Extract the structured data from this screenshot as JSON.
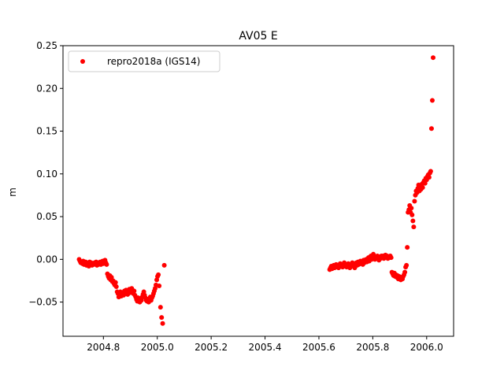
{
  "chart_data": {
    "type": "scatter",
    "title": "AV05 E",
    "xlabel": "",
    "ylabel": "m",
    "xlim": [
      2004.65,
      2006.1
    ],
    "ylim": [
      -0.09,
      0.25
    ],
    "xticks": [
      "2004.8",
      "2005.0",
      "2005.2",
      "2005.4",
      "2005.6",
      "2005.8",
      "2006.0"
    ],
    "yticks": [
      "0.25",
      "0.20",
      "0.15",
      "0.10",
      "0.05",
      "0.00",
      "−0.05"
    ],
    "xtick_values": [
      2004.8,
      2005.0,
      2005.2,
      2005.4,
      2005.6,
      2005.8,
      2006.0
    ],
    "ytick_values": [
      0.25,
      0.2,
      0.15,
      0.1,
      0.05,
      0.0,
      -0.05
    ],
    "legend_position": "top-left",
    "grid": false,
    "series": [
      {
        "name": "repro2018a (IGS14)",
        "color": "#ff0000",
        "marker": "circle",
        "points": [
          [
            2004.71,
            0.0
          ],
          [
            2004.713,
            -0.002
          ],
          [
            2004.716,
            -0.004
          ],
          [
            2004.719,
            -0.003
          ],
          [
            2004.722,
            -0.005
          ],
          [
            2004.725,
            -0.002
          ],
          [
            2004.728,
            -0.006
          ],
          [
            2004.731,
            -0.004
          ],
          [
            2004.734,
            -0.003
          ],
          [
            2004.737,
            -0.007
          ],
          [
            2004.74,
            -0.004
          ],
          [
            2004.743,
            -0.005
          ],
          [
            2004.746,
            -0.008
          ],
          [
            2004.749,
            -0.003
          ],
          [
            2004.752,
            -0.006
          ],
          [
            2004.755,
            -0.004
          ],
          [
            2004.758,
            -0.007
          ],
          [
            2004.761,
            -0.005
          ],
          [
            2004.764,
            -0.006
          ],
          [
            2004.767,
            -0.004
          ],
          [
            2004.77,
            -0.005
          ],
          [
            2004.773,
            -0.003
          ],
          [
            2004.776,
            -0.007
          ],
          [
            2004.779,
            -0.004
          ],
          [
            2004.782,
            -0.006
          ],
          [
            2004.785,
            -0.005
          ],
          [
            2004.788,
            -0.003
          ],
          [
            2004.791,
            -0.006
          ],
          [
            2004.794,
            -0.004
          ],
          [
            2004.797,
            -0.002
          ],
          [
            2004.8,
            -0.005
          ],
          [
            2004.803,
            -0.003
          ],
          [
            2004.806,
            -0.001
          ],
          [
            2004.809,
            -0.004
          ],
          [
            2004.812,
            -0.006
          ],
          [
            2004.815,
            -0.017
          ],
          [
            2004.818,
            -0.02
          ],
          [
            2004.821,
            -0.022
          ],
          [
            2004.824,
            -0.019
          ],
          [
            2004.827,
            -0.024
          ],
          [
            2004.83,
            -0.021
          ],
          [
            2004.833,
            -0.026
          ],
          [
            2004.836,
            -0.025
          ],
          [
            2004.839,
            -0.028
          ],
          [
            2004.842,
            -0.03
          ],
          [
            2004.845,
            -0.027
          ],
          [
            2004.848,
            -0.032
          ],
          [
            2004.851,
            -0.038
          ],
          [
            2004.854,
            -0.04
          ],
          [
            2004.857,
            -0.044
          ],
          [
            2004.86,
            -0.041
          ],
          [
            2004.863,
            -0.038
          ],
          [
            2004.866,
            -0.043
          ],
          [
            2004.869,
            -0.04
          ],
          [
            2004.872,
            -0.039
          ],
          [
            2004.875,
            -0.042
          ],
          [
            2004.878,
            -0.037
          ],
          [
            2004.881,
            -0.04
          ],
          [
            2004.884,
            -0.036
          ],
          [
            2004.887,
            -0.039
          ],
          [
            2004.89,
            -0.041
          ],
          [
            2004.893,
            -0.038
          ],
          [
            2004.896,
            -0.035
          ],
          [
            2004.899,
            -0.039
          ],
          [
            2004.902,
            -0.037
          ],
          [
            2004.905,
            -0.034
          ],
          [
            2004.908,
            -0.036
          ],
          [
            2004.911,
            -0.04
          ],
          [
            2004.914,
            -0.037
          ],
          [
            2004.917,
            -0.042
          ],
          [
            2004.92,
            -0.044
          ],
          [
            2004.923,
            -0.047
          ],
          [
            2004.926,
            -0.049
          ],
          [
            2004.929,
            -0.045
          ],
          [
            2004.932,
            -0.048
          ],
          [
            2004.935,
            -0.05
          ],
          [
            2004.938,
            -0.046
          ],
          [
            2004.941,
            -0.048
          ],
          [
            2004.944,
            -0.044
          ],
          [
            2004.947,
            -0.041
          ],
          [
            2004.95,
            -0.038
          ],
          [
            2004.953,
            -0.042
          ],
          [
            2004.956,
            -0.045
          ],
          [
            2004.959,
            -0.048
          ],
          [
            2004.962,
            -0.049
          ],
          [
            2004.965,
            -0.047
          ],
          [
            2004.968,
            -0.05
          ],
          [
            2004.971,
            -0.046
          ],
          [
            2004.974,
            -0.044
          ],
          [
            2004.977,
            -0.048
          ],
          [
            2004.98,
            -0.045
          ],
          [
            2004.983,
            -0.043
          ],
          [
            2004.986,
            -0.04
          ],
          [
            2004.989,
            -0.037
          ],
          [
            2004.992,
            -0.034
          ],
          [
            2004.995,
            -0.03
          ],
          [
            2004.998,
            -0.024
          ],
          [
            2005.001,
            -0.02
          ],
          [
            2005.004,
            -0.018
          ],
          [
            2005.007,
            -0.031
          ],
          [
            2005.012,
            -0.056
          ],
          [
            2005.016,
            -0.068
          ],
          [
            2005.02,
            -0.075
          ],
          [
            2005.026,
            -0.007
          ],
          [
            2005.64,
            -0.012
          ],
          [
            2005.643,
            -0.01
          ],
          [
            2005.646,
            -0.008
          ],
          [
            2005.649,
            -0.011
          ],
          [
            2005.652,
            -0.009
          ],
          [
            2005.655,
            -0.007
          ],
          [
            2005.658,
            -0.01
          ],
          [
            2005.661,
            -0.008
          ],
          [
            2005.664,
            -0.006
          ],
          [
            2005.667,
            -0.009
          ],
          [
            2005.67,
            -0.007
          ],
          [
            2005.673,
            -0.01
          ],
          [
            2005.676,
            -0.008
          ],
          [
            2005.679,
            -0.005
          ],
          [
            2005.682,
            -0.008
          ],
          [
            2005.685,
            -0.006
          ],
          [
            2005.688,
            -0.009
          ],
          [
            2005.691,
            -0.007
          ],
          [
            2005.694,
            -0.004
          ],
          [
            2005.697,
            -0.008
          ],
          [
            2005.7,
            -0.006
          ],
          [
            2005.703,
            -0.009
          ],
          [
            2005.706,
            -0.007
          ],
          [
            2005.709,
            -0.005
          ],
          [
            2005.712,
            -0.007
          ],
          [
            2005.715,
            -0.01
          ],
          [
            2005.718,
            -0.006
          ],
          [
            2005.721,
            -0.008
          ],
          [
            2005.724,
            -0.004
          ],
          [
            2005.727,
            -0.007
          ],
          [
            2005.73,
            -0.005
          ],
          [
            2005.733,
            -0.01
          ],
          [
            2005.736,
            -0.006
          ],
          [
            2005.739,
            -0.004
          ],
          [
            2005.742,
            -0.007
          ],
          [
            2005.745,
            -0.003
          ],
          [
            2005.748,
            -0.006
          ],
          [
            2005.751,
            -0.004
          ],
          [
            2005.754,
            -0.002
          ],
          [
            2005.757,
            -0.005
          ],
          [
            2005.76,
            -0.003
          ],
          [
            2005.763,
            -0.006
          ],
          [
            2005.766,
            -0.001
          ],
          [
            2005.769,
            -0.004
          ],
          [
            2005.772,
            -0.002
          ],
          [
            2005.775,
            0.0
          ],
          [
            2005.778,
            -0.003
          ],
          [
            2005.781,
            -0.001
          ],
          [
            2005.784,
            0.002
          ],
          [
            2005.787,
            -0.002
          ],
          [
            2005.79,
            0.001
          ],
          [
            2005.793,
            0.004
          ],
          [
            2005.796,
            0.0
          ],
          [
            2005.799,
            0.003
          ],
          [
            2005.802,
            0.006
          ],
          [
            2005.805,
            0.002
          ],
          [
            2005.808,
            0.0
          ],
          [
            2005.811,
            0.003
          ],
          [
            2005.814,
            0.001
          ],
          [
            2005.817,
            0.004
          ],
          [
            2005.82,
            0.002
          ],
          [
            2005.823,
            -0.001
          ],
          [
            2005.826,
            0.003
          ],
          [
            2005.829,
            0.001
          ],
          [
            2005.832,
            0.004
          ],
          [
            2005.835,
            0.002
          ],
          [
            2005.838,
            0.004
          ],
          [
            2005.841,
            0.001
          ],
          [
            2005.844,
            0.003
          ],
          [
            2005.847,
            0.005
          ],
          [
            2005.85,
            0.002
          ],
          [
            2005.853,
            0.004
          ],
          [
            2005.856,
            0.001
          ],
          [
            2005.859,
            0.003
          ],
          [
            2005.862,
            0.002
          ],
          [
            2005.865,
            0.004
          ],
          [
            2005.868,
            0.002
          ],
          [
            2005.871,
            -0.015
          ],
          [
            2005.874,
            -0.017
          ],
          [
            2005.877,
            -0.019
          ],
          [
            2005.88,
            -0.016
          ],
          [
            2005.883,
            -0.02
          ],
          [
            2005.886,
            -0.018
          ],
          [
            2005.889,
            -0.021
          ],
          [
            2005.892,
            -0.019
          ],
          [
            2005.895,
            -0.023
          ],
          [
            2005.898,
            -0.02
          ],
          [
            2005.901,
            -0.022
          ],
          [
            2005.904,
            -0.024
          ],
          [
            2005.907,
            -0.021
          ],
          [
            2005.91,
            -0.023
          ],
          [
            2005.913,
            -0.02
          ],
          [
            2005.916,
            -0.018
          ],
          [
            2005.919,
            -0.015
          ],
          [
            2005.922,
            -0.009
          ],
          [
            2005.925,
            -0.007
          ],
          [
            2005.928,
            0.014
          ],
          [
            2005.931,
            0.055
          ],
          [
            2005.934,
            0.058
          ],
          [
            2005.937,
            0.063
          ],
          [
            2005.94,
            0.055
          ],
          [
            2005.943,
            0.06
          ],
          [
            2005.946,
            0.052
          ],
          [
            2005.949,
            0.045
          ],
          [
            2005.952,
            0.038
          ],
          [
            2005.955,
            0.068
          ],
          [
            2005.958,
            0.075
          ],
          [
            2005.961,
            0.08
          ],
          [
            2005.964,
            0.078
          ],
          [
            2005.967,
            0.083
          ],
          [
            2005.97,
            0.087
          ],
          [
            2005.973,
            0.08
          ],
          [
            2005.976,
            0.085
          ],
          [
            2005.979,
            0.082
          ],
          [
            2005.982,
            0.088
          ],
          [
            2005.985,
            0.084
          ],
          [
            2005.988,
            0.09
          ],
          [
            2005.991,
            0.092
          ],
          [
            2005.994,
            0.089
          ],
          [
            2005.997,
            0.095
          ],
          [
            2006.0,
            0.093
          ],
          [
            2006.003,
            0.097
          ],
          [
            2006.006,
            0.099
          ],
          [
            2006.009,
            0.096
          ],
          [
            2006.012,
            0.101
          ],
          [
            2006.015,
            0.103
          ],
          [
            2006.018,
            0.153
          ],
          [
            2006.021,
            0.186
          ],
          [
            2006.024,
            0.236
          ]
        ]
      }
    ]
  }
}
